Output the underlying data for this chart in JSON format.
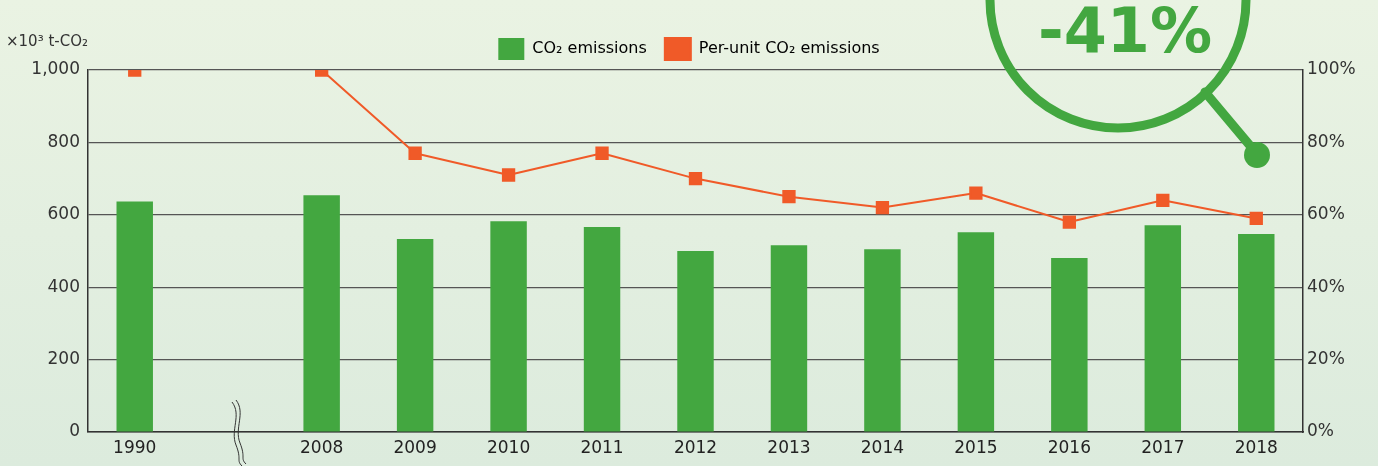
{
  "chart_data": {
    "type": "bar",
    "ylabel": "×10³ t-CO₂",
    "categories": [
      "1990",
      null,
      "2008",
      "2009",
      "2010",
      "2011",
      "2012",
      "2013",
      "2014",
      "2015",
      "2016",
      "2017",
      "2018"
    ],
    "series": [
      {
        "name": "CO₂ emissions",
        "color": "#43a740",
        "values": [
          637,
          null,
          654,
          533,
          582,
          566,
          500,
          516,
          505,
          552,
          481,
          571,
          547
        ]
      },
      {
        "name": "Per-unit CO₂ emissions",
        "type": "line",
        "axis": "y2",
        "color": "#f05a28",
        "values": [
          100,
          null,
          100,
          77,
          71,
          77,
          70,
          65,
          62,
          66,
          58,
          64,
          59
        ]
      }
    ],
    "ylim": [
      0,
      1000
    ],
    "yticks": [
      0,
      200,
      400,
      600,
      800,
      {
        "value": 1000,
        "label": "1,000"
      }
    ],
    "y2lim": [
      0,
      100
    ],
    "y2ticks": [
      {
        "value": 0,
        "label": "0%"
      },
      {
        "value": 20,
        "label": "20%"
      },
      {
        "value": 40,
        "label": "40%"
      },
      {
        "value": 60,
        "label": "60%"
      },
      {
        "value": 80,
        "label": "80%"
      },
      {
        "value": 100,
        "label": "100%"
      }
    ],
    "grid": "y",
    "legend": "top",
    "marker": "square",
    "line_style": "solid",
    "annotations": [
      "-41%"
    ]
  }
}
